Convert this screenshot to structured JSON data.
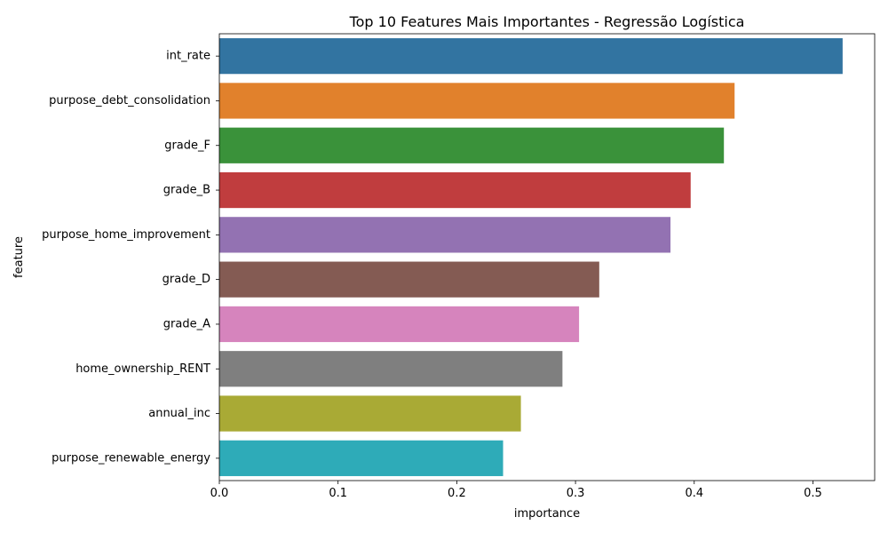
{
  "chart_data": {
    "type": "bar",
    "orientation": "horizontal",
    "title": "Top 10 Features Mais Importantes - Regressão Logística",
    "xlabel": "importance",
    "ylabel": "feature",
    "xlim": [
      0,
      0.552
    ],
    "xticks": [
      "0.0",
      "0.1",
      "0.2",
      "0.3",
      "0.4",
      "0.5"
    ],
    "xtick_values": [
      0,
      0.1,
      0.2,
      0.3,
      0.4,
      0.5
    ],
    "grid": false,
    "categories": [
      "int_rate",
      "purpose_debt_consolidation",
      "grade_F",
      "grade_B",
      "purpose_home_improvement",
      "grade_D",
      "grade_A",
      "home_ownership_RENT",
      "annual_inc",
      "purpose_renewable_energy"
    ],
    "values": [
      0.525,
      0.434,
      0.425,
      0.397,
      0.38,
      0.32,
      0.303,
      0.289,
      0.254,
      0.239
    ],
    "colors": [
      "#3274a1",
      "#e1812c",
      "#3a923a",
      "#c03d3e",
      "#9372b2",
      "#845b53",
      "#d684bd",
      "#7f7f7f",
      "#a9aa35",
      "#2eabb8"
    ]
  }
}
